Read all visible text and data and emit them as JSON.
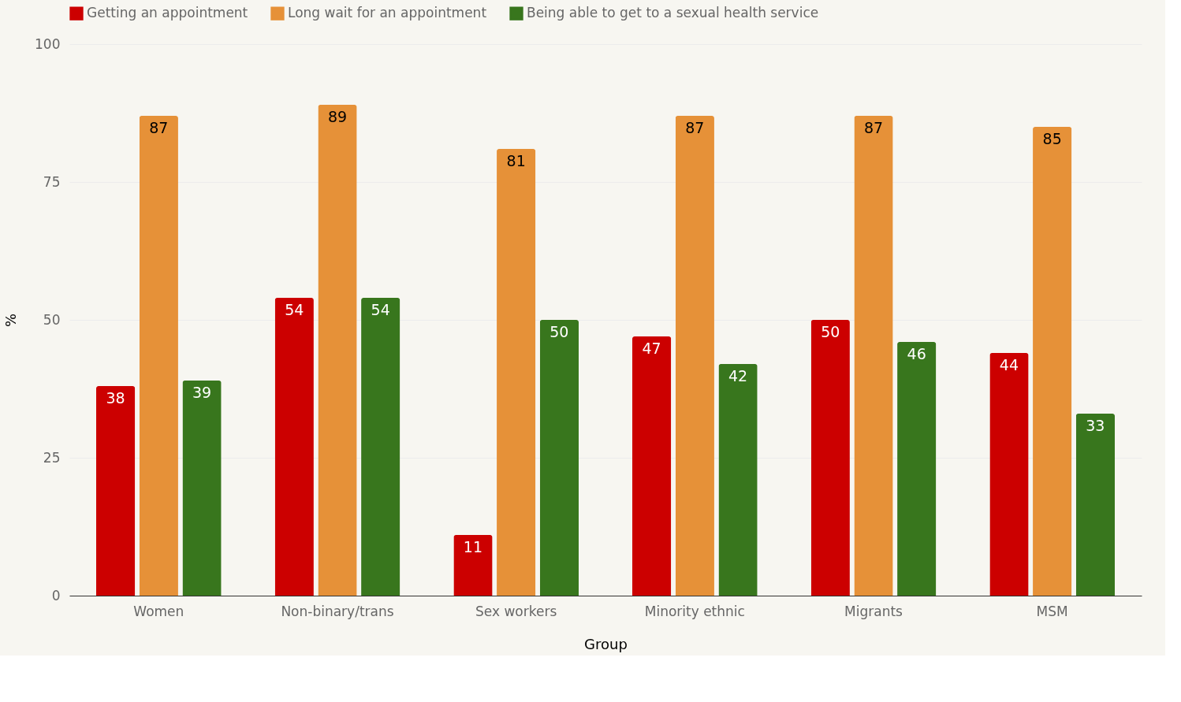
{
  "chart_data": {
    "type": "bar",
    "xlabel": "Group",
    "ylabel": "%",
    "categories": [
      "Women",
      "Non-binary/trans",
      "Sex workers",
      "Minority ethnic",
      "Migrants",
      "MSM"
    ],
    "series": [
      {
        "name": "Getting an appointment",
        "color": "#cc0000",
        "values": [
          38,
          54,
          11,
          47,
          50,
          44
        ]
      },
      {
        "name": "Long wait for an appointment",
        "color": "#e69138",
        "values": [
          87,
          89,
          81,
          87,
          87,
          85
        ]
      },
      {
        "name": "Being able to get to a sexual health service",
        "color": "#38761d",
        "values": [
          39,
          54,
          50,
          42,
          46,
          33
        ]
      }
    ],
    "ylim": [
      0,
      100
    ],
    "yticks": [
      0,
      25,
      50,
      75,
      100
    ],
    "grid": "y",
    "legend": "top",
    "data_labels": true
  }
}
